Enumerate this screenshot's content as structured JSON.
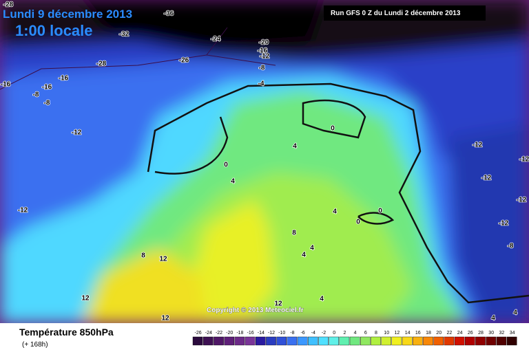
{
  "header": {
    "date": "Lundi 9 décembre 2013",
    "time": "1:00 locale",
    "run": "Run GFS 0 Z du Lundi 2 décembre 2013"
  },
  "contour_labels": [
    -28,
    -36,
    -32,
    -24,
    -20,
    -16,
    -12,
    -28,
    -26,
    -8,
    -16,
    -16,
    -16,
    -8,
    -8,
    -4,
    -12,
    0,
    0,
    4,
    4,
    -12,
    -12,
    -12,
    -12,
    -12,
    4,
    0,
    0,
    -12,
    8,
    4,
    4,
    -8,
    8,
    12,
    12,
    12,
    4,
    12,
    4,
    4
  ],
  "copyright": "Copyright © 2013 Meteociel.fr",
  "footer": {
    "title": "Température 850hPa",
    "lead": "(+ 168h)"
  },
  "legend": {
    "labels": [
      -26,
      -24,
      -22,
      -20,
      -18,
      -16,
      -14,
      -12,
      -10,
      -8,
      -6,
      -4,
      -2,
      0,
      2,
      4,
      6,
      8,
      10,
      12,
      14,
      16,
      18,
      20,
      22,
      24,
      26,
      28,
      30,
      32,
      34
    ],
    "colors": [
      "#2b0a3d",
      "#3d1052",
      "#4f1766",
      "#5e1f78",
      "#6c2a88",
      "#7a3598",
      "#2a1aa0",
      "#2a3cc0",
      "#3050d8",
      "#3a70f0",
      "#3c98ff",
      "#40c0ff",
      "#50e0ff",
      "#60f0e8",
      "#60f0b0",
      "#70e880",
      "#90e860",
      "#b0f040",
      "#d0f030",
      "#f0f020",
      "#f8d818",
      "#f8b010",
      "#f88808",
      "#f06000",
      "#e03800",
      "#d01000",
      "#b00000",
      "#900000",
      "#700000",
      "#500000",
      "#300000"
    ]
  }
}
